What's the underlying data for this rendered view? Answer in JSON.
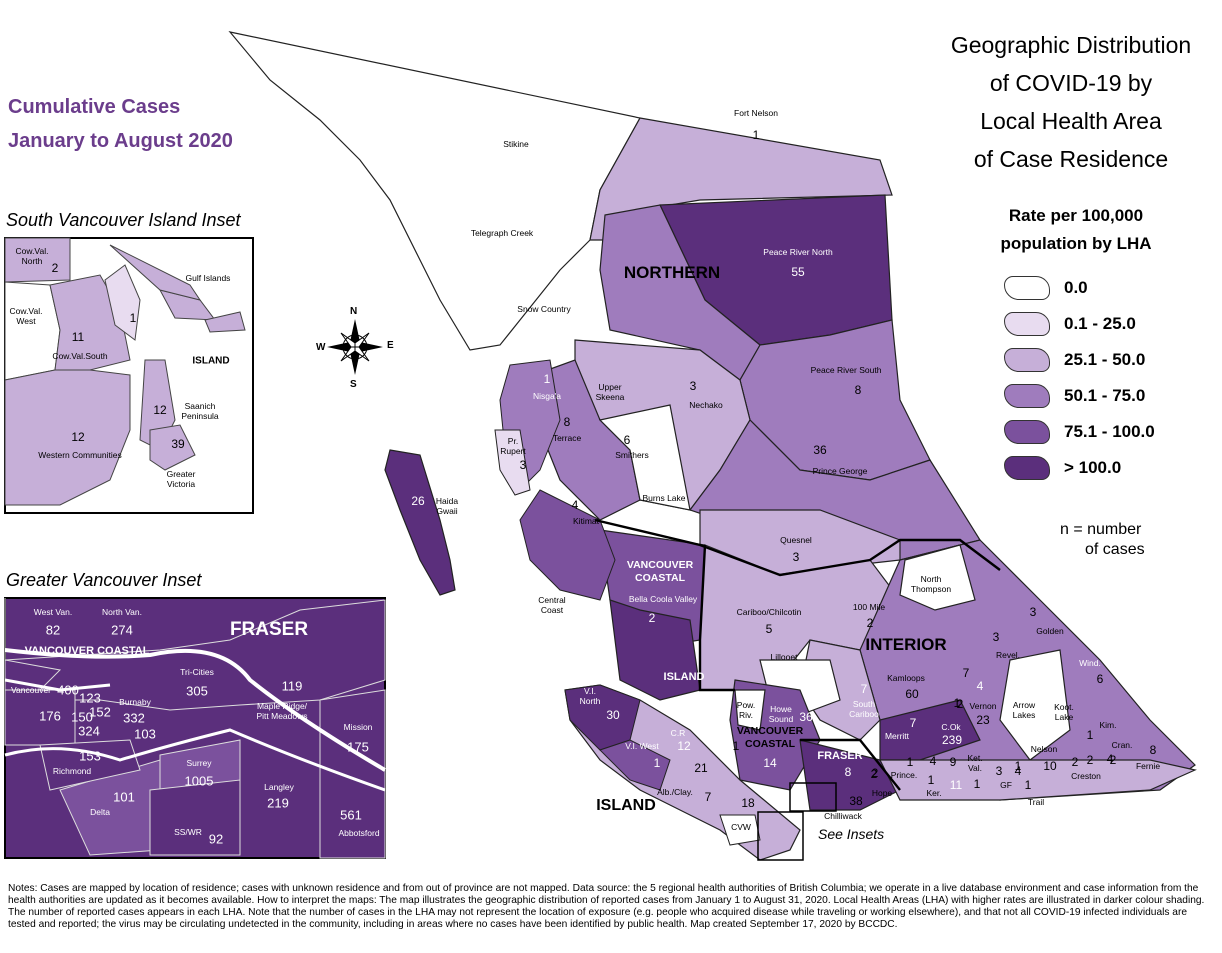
{
  "title_lines": [
    "Geographic Distribution",
    "of COVID-19 by",
    "Local Health Area",
    "of Case Residence"
  ],
  "subtitle_lines": [
    "Cumulative Cases",
    "January to August 2020"
  ],
  "legend": {
    "title_lines": [
      "Rate per 100,000",
      "population by LHA"
    ],
    "items": [
      {
        "label": "0.0",
        "color": "#ffffff"
      },
      {
        "label": "0.1 - 25.0",
        "color": "#e8dcf0"
      },
      {
        "label": "25.1 - 50.0",
        "color": "#c6afd8"
      },
      {
        "label": "50.1 - 75.0",
        "color": "#9f7cbd"
      },
      {
        "label": "75.1 - 100.0",
        "color": "#7b519d"
      },
      {
        "label": "> 100.0",
        "color": "#5b2f7c"
      }
    ]
  },
  "n_note_lines": [
    "n = number",
    "of cases"
  ],
  "compass": {
    "n": "N",
    "s": "S",
    "e": "E",
    "w": "W"
  },
  "regions": {
    "northern": "NORTHERN",
    "interior": "INTERIOR",
    "island_main": "ISLAND",
    "island_upper": "ISLAND",
    "vancouver_coastal_lines": [
      "VANCOUVER",
      "COASTAL"
    ],
    "vancouver_coastal_small_lines": [
      "VANCOUVER",
      "COASTAL"
    ],
    "fraser_small": "FRASER",
    "fraser_inset": "FRASER",
    "vancouver_coastal_inset": "VANCOUVER COASTAL",
    "island_svi": "ISLAND"
  },
  "see_insets": "See Insets",
  "svi_inset": {
    "title": "South Vancouver Island Inset",
    "areas": [
      {
        "name": "Cow.Val. North",
        "cases": "2"
      },
      {
        "name": "Gulf Islands",
        "cases": ""
      },
      {
        "name": "Cow.Val. West",
        "cases": ""
      },
      {
        "name": "",
        "cases": "1"
      },
      {
        "name": "Cow.Val.South",
        "cases": "11"
      },
      {
        "name": "Saanich Peninsula",
        "cases": "12"
      },
      {
        "name": "Western Communities",
        "cases": "12"
      },
      {
        "name": "Greater Victoria",
        "cases": "39"
      }
    ]
  },
  "gv_inset": {
    "title": "Greater Vancouver Inset",
    "areas": [
      {
        "name": "West Van.",
        "cases": "82"
      },
      {
        "name": "North Van.",
        "cases": "274"
      },
      {
        "name": "Tri-Cities",
        "cases": "305"
      },
      {
        "name": "Maple Ridge/ Pitt Meadows",
        "cases": "119"
      },
      {
        "name": "Mission",
        "cases": "175"
      },
      {
        "name": "Vancouver",
        "cases": "400"
      },
      {
        "name": "",
        "cases": "123"
      },
      {
        "name": "",
        "cases": "152"
      },
      {
        "name": "",
        "cases": "150"
      },
      {
        "name": "",
        "cases": "324"
      },
      {
        "name": "",
        "cases": "176"
      },
      {
        "name": "Burnaby",
        "cases": "332"
      },
      {
        "name": "",
        "cases": "103"
      },
      {
        "name": "Richmond",
        "cases": "153"
      },
      {
        "name": "Surrey",
        "cases": "1005"
      },
      {
        "name": "Langley",
        "cases": "219"
      },
      {
        "name": "Delta",
        "cases": "101"
      },
      {
        "name": "SS/WR",
        "cases": "92"
      },
      {
        "name": "Abbotsford",
        "cases": "561"
      }
    ]
  },
  "lha_labels": [
    {
      "name": "Fort Nelson",
      "cases": "1"
    },
    {
      "name": "Stikine",
      "cases": ""
    },
    {
      "name": "Telegraph Creek",
      "cases": ""
    },
    {
      "name": "Peace River North",
      "cases": "55"
    },
    {
      "name": "Snow Country",
      "cases": ""
    },
    {
      "name": "Peace River South",
      "cases": "8"
    },
    {
      "name": "Nisga'a",
      "cases": "1"
    },
    {
      "name": "Upper Skeena",
      "cases": ""
    },
    {
      "name": "Nechako",
      "cases": "3"
    },
    {
      "name": "Terrace",
      "cases": "8"
    },
    {
      "name": "Smithers",
      "cases": "6"
    },
    {
      "name": "Pr. Rupert",
      "cases": "3"
    },
    {
      "name": "Prince George",
      "cases": "36"
    },
    {
      "name": "Haida Gwaii",
      "cases": "26"
    },
    {
      "name": "Burns Lake",
      "cases": ""
    },
    {
      "name": "Kitimat",
      "cases": "4"
    },
    {
      "name": "Quesnel",
      "cases": "3"
    },
    {
      "name": "Bella Coola Valley",
      "cases": "2"
    },
    {
      "name": "Central Coast",
      "cases": ""
    },
    {
      "name": "North Thompson",
      "cases": ""
    },
    {
      "name": "100 Mile",
      "cases": "2"
    },
    {
      "name": "Cariboo/Chilcotin",
      "cases": "5"
    },
    {
      "name": "Golden",
      "cases": "3"
    },
    {
      "name": "Revel.",
      "cases": "3"
    },
    {
      "name": "Kamloops",
      "cases": "60"
    },
    {
      "name": "Wind.",
      "cases": "6"
    },
    {
      "name": "Lillooet",
      "cases": ""
    },
    {
      "name": "South Cariboo",
      "cases": "7"
    },
    {
      "name": "Vernon",
      "cases": "23"
    },
    {
      "name": "Arrow Lakes",
      "cases": ""
    },
    {
      "name": "Koot. Lake",
      "cases": ""
    },
    {
      "name": "V.I. North",
      "cases": "30"
    },
    {
      "name": "Pow. Riv.",
      "cases": ""
    },
    {
      "name": "Howe Sound",
      "cases": "36"
    },
    {
      "name": "Merritt",
      "cases": "7"
    },
    {
      "name": "C.Ok",
      "cases": "239"
    },
    {
      "name": "Kim.",
      "cases": "1"
    },
    {
      "name": "C.R",
      "cases": "12"
    },
    {
      "name": "V.I. West",
      "cases": "1"
    },
    {
      "name": "Nelson",
      "cases": "10"
    },
    {
      "name": "Cran.",
      "cases": "4"
    },
    {
      "name": "Fernie",
      "cases": "8"
    },
    {
      "name": "Ket. Val.",
      "cases": "1"
    },
    {
      "name": "Creston",
      "cases": "2"
    },
    {
      "name": "Prince.",
      "cases": "1"
    },
    {
      "name": "Hope",
      "cases": "2"
    },
    {
      "name": "Alb./Clay.",
      "cases": "7"
    },
    {
      "name": "CVW",
      "cases": ""
    },
    {
      "name": "Chilliwack",
      "cases": "38"
    },
    {
      "name": "GF",
      "cases": "3"
    },
    {
      "name": "Trail",
      "cases": "1"
    },
    {
      "name": "Ker.",
      "cases": "1"
    }
  ],
  "plain_numbers": [
    "1",
    "2",
    "7",
    "4",
    "2",
    "1",
    "14",
    "21",
    "18",
    "8",
    "4",
    "9",
    "11",
    "1",
    "4",
    "2",
    "2"
  ],
  "notes": "Notes: Cases are mapped by location of residence; cases with unknown residence and from out of province are not mapped. Data source: the 5 regional health authorities of British Columbia; we operate in a live database environment and case information from the health authorities are updated as it becomes available. How to interpret the maps: The map illustrates the geographic distribution of reported cases from January 1 to August 31, 2020. Local Health Areas (LHA) with higher rates are illustrated in darker colour shading. The number of reported cases appears in each LHA. Note that the number of cases in the LHA may not represent the location of exposure (e.g. people who acquired disease while traveling or working elsewhere), and that not all COVID-19 infected individuals are tested and reported; the virus may be circulating undetected in the community, including in areas where no cases have been identified by public health. Map created September 17, 2020 by BCCDC."
}
